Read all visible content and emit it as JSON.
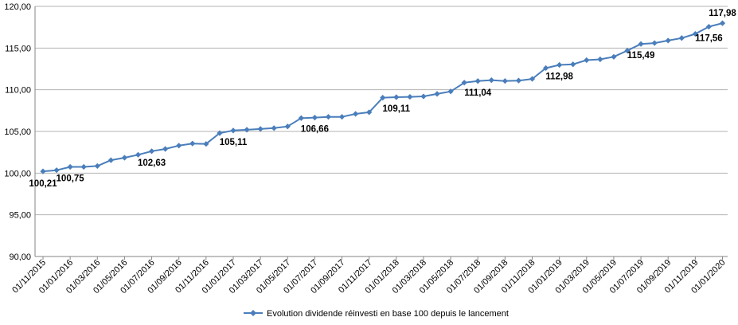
{
  "chart_data": {
    "type": "line",
    "title": "",
    "xlabel": "",
    "ylabel": "",
    "ylim": [
      90,
      120
    ],
    "y_ticks": [
      "90,00",
      "95,00",
      "100,00",
      "105,00",
      "110,00",
      "115,00",
      "120,00"
    ],
    "x_tick_labels": [
      "01/11/2015",
      "01/01/2016",
      "01/03/2016",
      "01/05/2016",
      "01/07/2016",
      "01/09/2016",
      "01/11/2016",
      "01/01/2017",
      "01/03/2017",
      "01/05/2017",
      "01/07/2017",
      "01/09/2017",
      "01/11/2017",
      "01/01/2018",
      "01/03/2018",
      "01/05/2018",
      "01/07/2018",
      "01/09/2018",
      "01/11/2018",
      "01/01/2019",
      "01/03/2019",
      "01/05/2019",
      "01/07/2019",
      "01/09/2019",
      "01/11/2019",
      "01/01/2020"
    ],
    "grid": "horizontal",
    "legend_position": "bottom",
    "series": [
      {
        "name": "Evolution dividende réinvesti en base 100 depuis le lancement",
        "color": "#4A7EBB",
        "x": [
          "2015-11",
          "2015-12",
          "2016-01",
          "2016-02",
          "2016-03",
          "2016-04",
          "2016-05",
          "2016-06",
          "2016-07",
          "2016-08",
          "2016-09",
          "2016-10",
          "2016-11",
          "2016-12",
          "2017-01",
          "2017-02",
          "2017-03",
          "2017-04",
          "2017-05",
          "2017-06",
          "2017-07",
          "2017-08",
          "2017-09",
          "2017-10",
          "2017-11",
          "2017-12",
          "2018-01",
          "2018-02",
          "2018-03",
          "2018-04",
          "2018-05",
          "2018-06",
          "2018-07",
          "2018-08",
          "2018-09",
          "2018-10",
          "2018-11",
          "2018-12",
          "2019-01",
          "2019-02",
          "2019-03",
          "2019-04",
          "2019-05",
          "2019-06",
          "2019-07",
          "2019-08",
          "2019-09",
          "2019-10",
          "2019-11",
          "2019-12",
          "2020-01"
        ],
        "values": [
          100.21,
          100.35,
          100.75,
          100.75,
          100.85,
          101.55,
          101.85,
          102.2,
          102.63,
          102.9,
          103.3,
          103.55,
          103.5,
          104.8,
          105.11,
          105.2,
          105.3,
          105.4,
          105.6,
          106.6,
          106.66,
          106.75,
          106.75,
          107.1,
          107.3,
          109.05,
          109.11,
          109.15,
          109.2,
          109.5,
          109.8,
          110.85,
          111.04,
          111.15,
          111.05,
          111.1,
          111.3,
          112.6,
          112.98,
          113.05,
          113.55,
          113.65,
          113.95,
          114.7,
          115.49,
          115.6,
          115.9,
          116.2,
          116.7,
          117.56,
          117.98
        ]
      }
    ],
    "data_labels": [
      {
        "x": "2015-11",
        "text": "100,21"
      },
      {
        "x": "2016-01",
        "text": "100,75"
      },
      {
        "x": "2016-07",
        "text": "102,63"
      },
      {
        "x": "2017-01",
        "text": "105,11"
      },
      {
        "x": "2017-07",
        "text": "106,66"
      },
      {
        "x": "2018-01",
        "text": "109,11"
      },
      {
        "x": "2018-07",
        "text": "111,04"
      },
      {
        "x": "2019-01",
        "text": "112,98"
      },
      {
        "x": "2019-07",
        "text": "115,49"
      },
      {
        "x": "2019-12",
        "text": "117,56"
      },
      {
        "x": "2020-01",
        "text": "117,98"
      }
    ],
    "colors": {
      "series": "#4A7EBB",
      "grid": "#B3B3B3",
      "axis": "#868686"
    }
  }
}
